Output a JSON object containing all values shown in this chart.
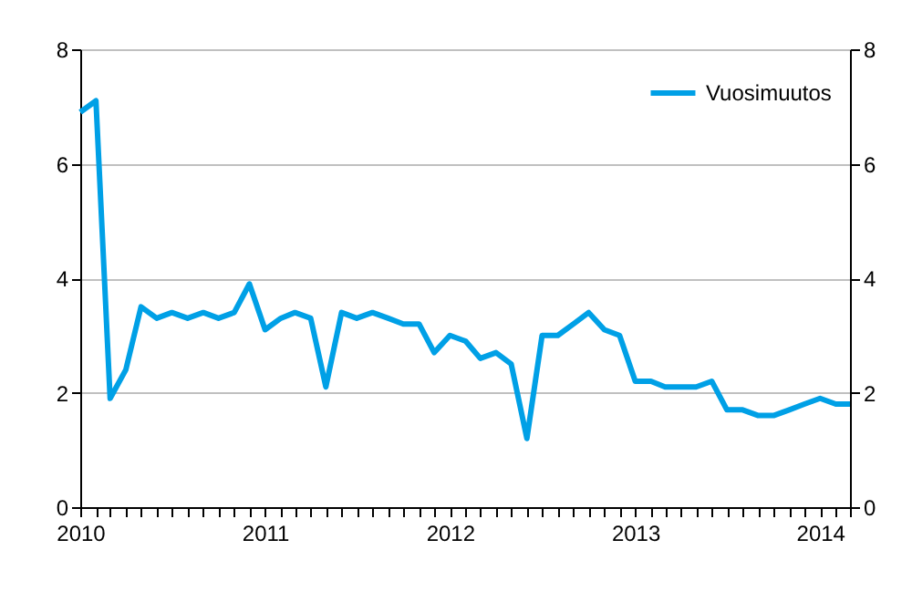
{
  "chart_data": {
    "type": "line",
    "x": [
      "2010-01",
      "2010-02",
      "2010-03",
      "2010-04",
      "2010-05",
      "2010-06",
      "2010-07",
      "2010-08",
      "2010-09",
      "2010-10",
      "2010-11",
      "2010-12",
      "2011-01",
      "2011-02",
      "2011-03",
      "2011-04",
      "2011-05",
      "2011-06",
      "2011-07",
      "2011-08",
      "2011-09",
      "2011-10",
      "2011-11",
      "2011-12",
      "2012-01",
      "2012-02",
      "2012-03",
      "2012-04",
      "2012-05",
      "2012-06",
      "2012-07",
      "2012-08",
      "2012-09",
      "2012-10",
      "2012-11",
      "2012-12",
      "2013-01",
      "2013-02",
      "2013-03",
      "2013-04",
      "2013-05",
      "2013-06",
      "2013-07",
      "2013-08",
      "2013-09",
      "2013-10",
      "2013-11",
      "2013-12",
      "2014-01",
      "2014-02",
      "2014-03"
    ],
    "series": [
      {
        "name": "Vuosimuutos",
        "color": "#00a0e6",
        "values": [
          6.9,
          7.1,
          1.9,
          2.4,
          3.5,
          3.3,
          3.4,
          3.3,
          3.4,
          3.3,
          3.4,
          3.9,
          3.1,
          3.3,
          3.4,
          3.3,
          2.1,
          3.4,
          3.3,
          3.4,
          3.3,
          3.2,
          3.2,
          2.7,
          3.0,
          2.9,
          2.6,
          2.7,
          2.5,
          1.2,
          3.0,
          3.0,
          3.2,
          3.4,
          3.1,
          3.0,
          2.2,
          2.2,
          2.1,
          2.1,
          2.1,
          2.2,
          1.7,
          1.7,
          1.6,
          1.6,
          1.7,
          1.8,
          1.9,
          1.8,
          1.8
        ]
      }
    ],
    "xlim": [
      "2010-01",
      "2014-03"
    ],
    "xticks": [
      {
        "value": "2010-01",
        "label": "2010"
      },
      {
        "value": "2010-02",
        "label": null
      },
      {
        "value": "2010-03",
        "label": null
      },
      {
        "value": "2010-04",
        "label": null
      },
      {
        "value": "2010-05",
        "label": null
      },
      {
        "value": "2010-06",
        "label": null
      },
      {
        "value": "2010-07",
        "label": null
      },
      {
        "value": "2010-08",
        "label": null
      },
      {
        "value": "2010-09",
        "label": null
      },
      {
        "value": "2010-10",
        "label": null
      },
      {
        "value": "2010-11",
        "label": null
      },
      {
        "value": "2010-12",
        "label": null
      },
      {
        "value": "2011-01",
        "label": "2011"
      },
      {
        "value": "2011-02",
        "label": null
      },
      {
        "value": "2011-03",
        "label": null
      },
      {
        "value": "2011-04",
        "label": null
      },
      {
        "value": "2011-05",
        "label": null
      },
      {
        "value": "2011-06",
        "label": null
      },
      {
        "value": "2011-07",
        "label": null
      },
      {
        "value": "2011-08",
        "label": null
      },
      {
        "value": "2011-09",
        "label": null
      },
      {
        "value": "2011-10",
        "label": null
      },
      {
        "value": "2011-11",
        "label": null
      },
      {
        "value": "2011-12",
        "label": null
      },
      {
        "value": "2012-01",
        "label": "2012"
      },
      {
        "value": "2012-02",
        "label": null
      },
      {
        "value": "2012-03",
        "label": null
      },
      {
        "value": "2012-04",
        "label": null
      },
      {
        "value": "2012-05",
        "label": null
      },
      {
        "value": "2012-06",
        "label": null
      },
      {
        "value": "2012-07",
        "label": null
      },
      {
        "value": "2012-08",
        "label": null
      },
      {
        "value": "2012-09",
        "label": null
      },
      {
        "value": "2012-10",
        "label": null
      },
      {
        "value": "2012-11",
        "label": null
      },
      {
        "value": "2012-12",
        "label": null
      },
      {
        "value": "2013-01",
        "label": "2013"
      },
      {
        "value": "2013-02",
        "label": null
      },
      {
        "value": "2013-03",
        "label": null
      },
      {
        "value": "2013-04",
        "label": null
      },
      {
        "value": "2013-05",
        "label": null
      },
      {
        "value": "2013-06",
        "label": null
      },
      {
        "value": "2013-07",
        "label": null
      },
      {
        "value": "2013-08",
        "label": null
      },
      {
        "value": "2013-09",
        "label": null
      },
      {
        "value": "2013-10",
        "label": null
      },
      {
        "value": "2013-11",
        "label": null
      },
      {
        "value": "2013-12",
        "label": null
      },
      {
        "value": "2014-01",
        "label": "2014"
      },
      {
        "value": "2014-02",
        "label": null
      },
      {
        "value": "2014-03",
        "label": null
      }
    ],
    "ylim": [
      0,
      8
    ],
    "yticks": [
      0,
      2,
      4,
      6,
      8
    ],
    "y2lim": [
      0,
      8
    ],
    "y2ticks": [
      0,
      2,
      4,
      6,
      8
    ],
    "grid": "y",
    "legend": "top right"
  }
}
